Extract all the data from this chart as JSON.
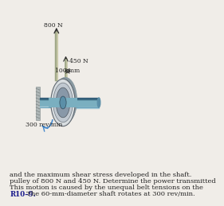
{
  "title_bold": "R10–9.",
  "title_text": "   The 60-mm-diameter shaft rotates at 300 rev/min.\nThis motion is caused by the unequal belt tensions on the\npulley of 800 N and 450 N. Determine the power transmitted\nand the maximum shear stress developed in the shaft.",
  "label_rpm": "300 rev/min",
  "label_100mm": "100 mm",
  "label_450N": "450 N",
  "label_800N": "800 N",
  "bg_color": "#f0ede8",
  "shaft_color_dark": "#5b8fa8",
  "shaft_color_light": "#a8ccd8",
  "shaft_color_mid": "#7aafc0",
  "pulley_face": "#b0b8c0",
  "pulley_edge": "#606870",
  "pulley_light": "#d8dde0",
  "belt_color": "#c8c8b0",
  "support_color": "#909898",
  "arrow_color": "#303030",
  "text_color": "#222222",
  "title_color": "#1a1a8c"
}
